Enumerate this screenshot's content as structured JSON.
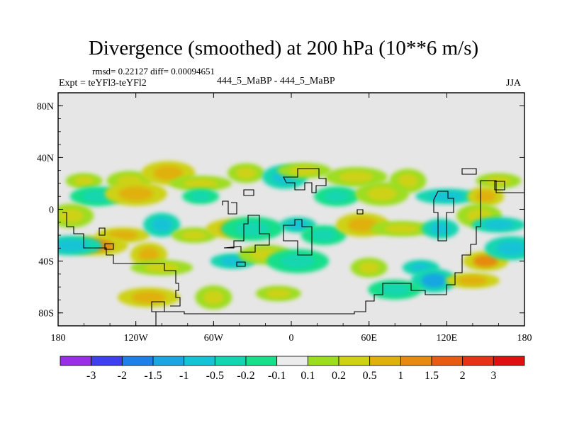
{
  "title": "Divergence (smoothed) at 200 hPa (10**6 m/s)",
  "subtitle_left_top": "rmsd= 0.22127 diff= 0.00094651",
  "subtitle_left": "Expt = teYFl3-teYFl2",
  "subtitle_center": "444_5_MaBP - 444_5_MaBP",
  "subtitle_right": "JJA",
  "colors": {
    "missing_background": "#e6e6e6",
    "frame": "#000000",
    "coastline": "#000000"
  },
  "chart_data": {
    "type": "heatmap",
    "title": "Divergence (smoothed) at 200 hPa (10**6 m/s)",
    "xlabel": "",
    "ylabel": "",
    "xlim": [
      -180,
      180
    ],
    "ylim": [
      -90,
      90
    ],
    "x_ticks": [
      {
        "value": -180,
        "label": "180"
      },
      {
        "value": -120,
        "label": "120W"
      },
      {
        "value": -60,
        "label": "60W"
      },
      {
        "value": 0,
        "label": "0"
      },
      {
        "value": 60,
        "label": "60E"
      },
      {
        "value": 120,
        "label": "120E"
      },
      {
        "value": 180,
        "label": "180"
      }
    ],
    "y_ticks": [
      {
        "value": 80,
        "label": "80N"
      },
      {
        "value": 40,
        "label": "40N"
      },
      {
        "value": 0,
        "label": "0"
      },
      {
        "value": -40,
        "label": "40S"
      },
      {
        "value": -80,
        "label": "80S"
      }
    ],
    "colorbar": {
      "levels": [
        "-3",
        "-2",
        "-1.5",
        "-1",
        "-0.5",
        "-0.2",
        "-0.1",
        "0.1",
        "0.2",
        "0.5",
        "1",
        "1.5",
        "2",
        "3"
      ],
      "colors": [
        "#9a2de6",
        "#3f3ff0",
        "#1d7fea",
        "#19a6e2",
        "#14c3d6",
        "#13d6b0",
        "#19df8a",
        "#ececec",
        "#9ddd20",
        "#cdd215",
        "#e0b00f",
        "#e68a10",
        "#e85c12",
        "#e63316",
        "#de1010"
      ]
    },
    "features": [
      {
        "lon": -160,
        "lat": 22,
        "value": 0.3
      },
      {
        "lon": -125,
        "lat": 22,
        "value": 0.4
      },
      {
        "lon": -95,
        "lat": 28,
        "value": 0.6
      },
      {
        "lon": -70,
        "lat": 20,
        "value": 0.3
      },
      {
        "lon": -35,
        "lat": 28,
        "value": 0.3
      },
      {
        "lon": -5,
        "lat": 25,
        "value": -0.6
      },
      {
        "lon": 10,
        "lat": 30,
        "value": 0.3
      },
      {
        "lon": 50,
        "lat": 25,
        "value": 0.3
      },
      {
        "lon": 90,
        "lat": 22,
        "value": 0.3
      },
      {
        "lon": 160,
        "lat": 22,
        "value": 0.3
      },
      {
        "lon": -150,
        "lat": 10,
        "value": -0.3
      },
      {
        "lon": -120,
        "lat": 12,
        "value": 0.6
      },
      {
        "lon": -70,
        "lat": 10,
        "value": -0.3
      },
      {
        "lon": 35,
        "lat": 10,
        "value": -0.3
      },
      {
        "lon": 70,
        "lat": 12,
        "value": 0.3
      },
      {
        "lon": 120,
        "lat": 10,
        "value": -0.6
      },
      {
        "lon": 150,
        "lat": 10,
        "value": 0.6
      },
      {
        "lon": -170,
        "lat": -5,
        "value": 0.3
      },
      {
        "lon": -130,
        "lat": -20,
        "value": 0.6
      },
      {
        "lon": -150,
        "lat": -28,
        "value": 1.2
      },
      {
        "lon": -100,
        "lat": -12,
        "value": -0.6
      },
      {
        "lon": -75,
        "lat": -20,
        "value": 0.3
      },
      {
        "lon": -45,
        "lat": -15,
        "value": 0.6
      },
      {
        "lon": -30,
        "lat": -15,
        "value": -0.3
      },
      {
        "lon": 5,
        "lat": -12,
        "value": -0.6
      },
      {
        "lon": 25,
        "lat": -20,
        "value": -0.3
      },
      {
        "lon": 55,
        "lat": -12,
        "value": 0.6
      },
      {
        "lon": 85,
        "lat": -15,
        "value": 0.3
      },
      {
        "lon": 115,
        "lat": -15,
        "value": -0.6
      },
      {
        "lon": 145,
        "lat": -5,
        "value": 0.3
      },
      {
        "lon": 160,
        "lat": -12,
        "value": -0.6
      },
      {
        "lon": -170,
        "lat": -28,
        "value": -0.6
      },
      {
        "lon": -110,
        "lat": -35,
        "value": 0.6
      },
      {
        "lon": -45,
        "lat": -40,
        "value": -0.6
      },
      {
        "lon": -20,
        "lat": -35,
        "value": 0.3
      },
      {
        "lon": 5,
        "lat": -40,
        "value": -0.3
      },
      {
        "lon": 100,
        "lat": -45,
        "value": -0.6
      },
      {
        "lon": 150,
        "lat": -40,
        "value": 1.2
      },
      {
        "lon": 170,
        "lat": -30,
        "value": -0.6
      },
      {
        "lon": -100,
        "lat": -45,
        "value": 0.3
      },
      {
        "lon": 60,
        "lat": -45,
        "value": 0.3
      },
      {
        "lon": 110,
        "lat": -55,
        "value": -1.2
      },
      {
        "lon": 140,
        "lat": -55,
        "value": 0.6
      },
      {
        "lon": -110,
        "lat": -68,
        "value": 0.6
      },
      {
        "lon": -60,
        "lat": -68,
        "value": 0.3
      },
      {
        "lon": -10,
        "lat": -65,
        "value": 0.3
      },
      {
        "lon": 80,
        "lat": -62,
        "value": -0.3
      }
    ]
  }
}
